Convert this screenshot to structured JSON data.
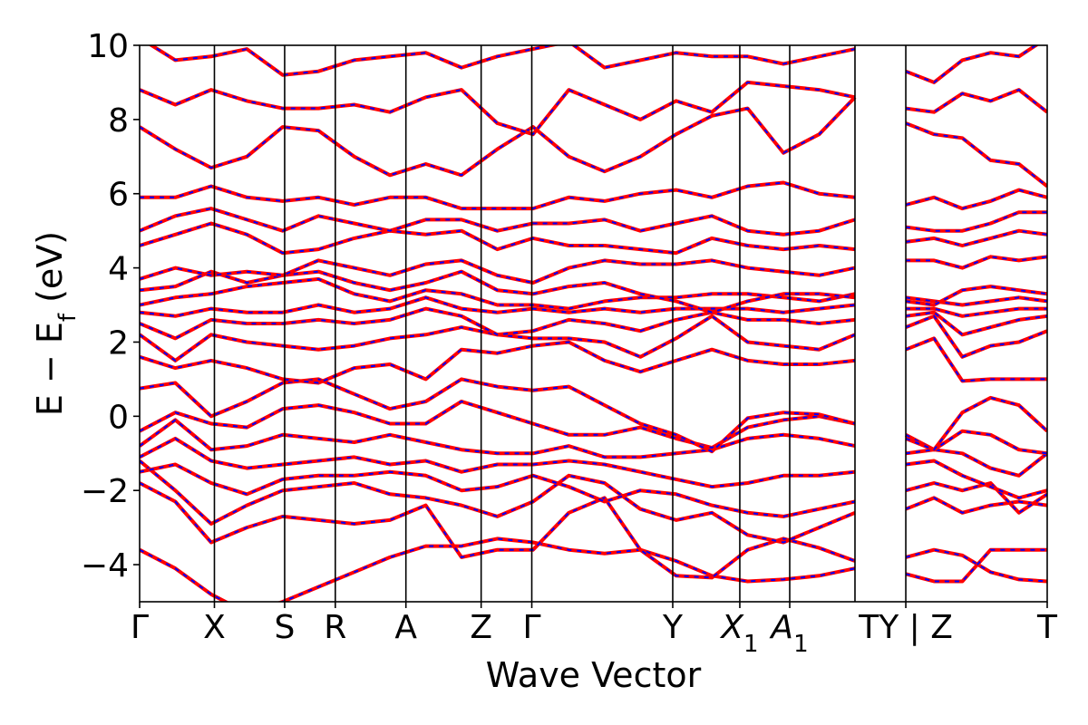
{
  "chart_data": {
    "type": "line",
    "title": "",
    "xlabel": "Wave Vector",
    "ylabel": "E − E_f (eV)",
    "ylabel_parts": {
      "main": "E − E",
      "sub": "f",
      "unit": " (eV)"
    },
    "ylim": [
      -5,
      10
    ],
    "yticks": [
      -4,
      -2,
      0,
      2,
      4,
      6,
      8,
      10
    ],
    "ytick_labels": [
      "−4",
      "−2",
      "0",
      "2",
      "4",
      "6",
      "8",
      "10"
    ],
    "grid": false,
    "legend": "none",
    "colors": {
      "solid_band": "#ff0000",
      "dashed_band": "#0000ff",
      "axes": "#000000"
    },
    "kpath": [
      {
        "label": "Γ",
        "sub": "",
        "pos": 0.0
      },
      {
        "label": "X",
        "sub": "",
        "pos": 0.0824
      },
      {
        "label": "S",
        "sub": "",
        "pos": 0.1598
      },
      {
        "label": "R",
        "sub": "",
        "pos": 0.2156
      },
      {
        "label": "A",
        "sub": "",
        "pos": 0.2934
      },
      {
        "label": "Z",
        "sub": "",
        "pos": 0.3763
      },
      {
        "label": "Γ",
        "sub": "",
        "pos": 0.4321
      },
      {
        "label": "Y",
        "sub": "",
        "pos": 0.5874
      },
      {
        "label": "X",
        "sub": "1",
        "pos": 0.6613
      },
      {
        "label": "A",
        "sub": "1",
        "pos": 0.7163
      },
      {
        "label": "TY | Z",
        "sub": "",
        "pos": 0.8442
      },
      {
        "label": "T",
        "sub": "",
        "pos": 1.0
      }
    ],
    "interior_vertical_lines": [
      0.0824,
      0.1598,
      0.2156,
      0.2934,
      0.3763,
      0.4321,
      0.5874,
      0.6613,
      0.7163,
      0.7882,
      0.8442
    ],
    "segment_break_after": 0.7882,
    "segment_resume_at": 0.8442,
    "series": [
      {
        "values": [
          -3.6,
          -4.1,
          -4.8,
          -5.3,
          -5.0,
          -4.6,
          -4.2,
          -3.8,
          -3.5,
          -3.5,
          -3.3,
          -3.4,
          -3.6,
          -3.7,
          -3.6,
          -3.9,
          -4.3,
          -4.45,
          -4.4,
          -4.3,
          -4.1,
          -3.8,
          -3.6,
          -3.75,
          -4.2,
          -4.4,
          -4.45
        ]
      },
      {
        "values": [
          -1.8,
          -2.3,
          -3.4,
          -3.0,
          -2.7,
          -2.8,
          -2.9,
          -2.8,
          -2.4,
          -3.8,
          -3.6,
          -3.6,
          -2.6,
          -2.2,
          -3.6,
          -4.3,
          -4.35,
          -3.6,
          -3.3,
          -3.55,
          -3.9,
          -4.25,
          -4.45,
          -4.45,
          -3.6,
          -3.6,
          -3.6
        ]
      },
      {
        "values": [
          -1.2,
          -2.0,
          -2.9,
          -2.4,
          -2.0,
          -1.9,
          -1.8,
          -2.1,
          -2.2,
          -2.4,
          -2.7,
          -2.3,
          -1.6,
          -1.8,
          -2.5,
          -2.8,
          -2.6,
          -3.2,
          -3.4,
          -3.0,
          -2.6,
          -2.5,
          -2.2,
          -2.6,
          -2.4,
          -2.3,
          -2.4
        ]
      },
      {
        "values": [
          -1.5,
          -1.3,
          -1.8,
          -2.1,
          -1.7,
          -1.6,
          -1.6,
          -1.5,
          -1.6,
          -2.0,
          -1.9,
          -1.6,
          -1.9,
          -2.3,
          -2.0,
          -2.1,
          -2.4,
          -2.6,
          -2.7,
          -2.5,
          -2.3,
          -2.0,
          -1.8,
          -2.0,
          -1.8,
          -2.6,
          -2.1
        ]
      },
      {
        "values": [
          -1.1,
          -0.6,
          -1.2,
          -1.4,
          -1.3,
          -1.2,
          -1.1,
          -1.3,
          -1.2,
          -1.5,
          -1.3,
          -1.3,
          -1.2,
          -1.3,
          -1.5,
          -1.7,
          -1.9,
          -1.8,
          -1.6,
          -1.6,
          -1.5,
          -1.3,
          -1.2,
          -1.6,
          -1.9,
          -2.2,
          -2.0
        ]
      },
      {
        "values": [
          -0.8,
          -0.1,
          -0.9,
          -0.8,
          -0.5,
          -0.6,
          -0.7,
          -0.5,
          -0.7,
          -0.9,
          -1.0,
          -1.0,
          -0.8,
          -1.1,
          -1.1,
          -1.0,
          -0.9,
          -0.6,
          -0.5,
          -0.6,
          -0.8,
          -1.0,
          -0.9,
          -1.0,
          -1.4,
          -1.6,
          -1.0
        ]
      },
      {
        "values": [
          -0.4,
          0.1,
          -0.2,
          -0.3,
          0.2,
          0.3,
          0.1,
          -0.2,
          -0.2,
          0.4,
          0.1,
          -0.2,
          -0.5,
          -0.5,
          -0.3,
          -0.6,
          -0.85,
          -0.3,
          -0.1,
          0.0,
          -0.2,
          -0.5,
          -0.9,
          -0.4,
          -0.5,
          -0.9,
          -1.0
        ]
      },
      {
        "values": [
          0.75,
          0.9,
          0.0,
          0.4,
          0.9,
          1.0,
          0.6,
          0.2,
          0.4,
          1.0,
          0.8,
          0.7,
          0.8,
          0.3,
          -0.2,
          -0.5,
          -0.95,
          -0.05,
          0.1,
          0.05,
          -0.2,
          -0.6,
          -0.9,
          0.1,
          0.5,
          0.3,
          -0.4
        ]
      },
      {
        "values": [
          1.6,
          1.3,
          1.5,
          1.3,
          1.0,
          0.9,
          1.3,
          1.4,
          1.0,
          1.8,
          1.7,
          1.9,
          2.0,
          1.5,
          1.2,
          1.5,
          1.8,
          1.5,
          1.4,
          1.4,
          1.5,
          1.8,
          2.1,
          0.95,
          1.0,
          1.0,
          1.0
        ]
      },
      {
        "values": [
          2.2,
          1.5,
          2.2,
          2.0,
          1.9,
          1.8,
          1.9,
          2.1,
          2.2,
          2.4,
          2.2,
          2.1,
          2.1,
          2.0,
          1.6,
          2.1,
          2.7,
          2.0,
          1.9,
          1.8,
          2.2,
          2.4,
          2.7,
          1.6,
          1.9,
          2.0,
          2.3
        ]
      },
      {
        "values": [
          2.5,
          2.1,
          2.6,
          2.5,
          2.5,
          2.6,
          2.5,
          2.6,
          2.9,
          2.7,
          2.2,
          2.3,
          2.6,
          2.5,
          2.3,
          2.6,
          2.8,
          2.6,
          2.6,
          2.5,
          2.6,
          2.7,
          2.8,
          2.2,
          2.4,
          2.6,
          2.7
        ]
      },
      {
        "values": [
          2.8,
          2.7,
          2.9,
          2.8,
          2.8,
          3.0,
          2.8,
          2.9,
          3.2,
          2.9,
          2.8,
          2.9,
          2.8,
          2.9,
          2.8,
          2.9,
          2.9,
          2.9,
          2.8,
          2.9,
          3.0,
          2.9,
          2.9,
          2.7,
          2.8,
          2.9,
          2.9
        ]
      },
      {
        "values": [
          3.0,
          3.2,
          3.3,
          3.5,
          3.6,
          3.7,
          3.3,
          3.1,
          3.4,
          3.3,
          3.0,
          3.0,
          2.9,
          3.1,
          3.2,
          3.2,
          3.3,
          3.3,
          3.2,
          3.1,
          3.3,
          3.2,
          3.1,
          3.0,
          3.1,
          3.2,
          3.1
        ]
      },
      {
        "values": [
          3.4,
          3.5,
          3.9,
          3.6,
          3.8,
          3.9,
          3.6,
          3.4,
          3.6,
          3.9,
          3.4,
          3.3,
          3.5,
          3.6,
          3.3,
          3.1,
          2.8,
          3.1,
          3.3,
          3.3,
          3.2,
          3.1,
          3.0,
          3.4,
          3.5,
          3.4,
          3.3
        ]
      },
      {
        "values": [
          3.7,
          4.0,
          3.8,
          3.9,
          3.8,
          4.2,
          4.0,
          3.8,
          4.1,
          4.2,
          3.8,
          3.6,
          4.0,
          4.2,
          4.1,
          4.1,
          4.2,
          4.0,
          3.9,
          3.8,
          4.0,
          4.2,
          4.2,
          4.0,
          4.3,
          4.2,
          4.3
        ]
      },
      {
        "values": [
          4.6,
          4.9,
          5.2,
          4.9,
          4.4,
          4.5,
          4.8,
          5.0,
          4.9,
          5.0,
          4.5,
          4.8,
          4.6,
          4.6,
          4.5,
          4.4,
          4.8,
          4.6,
          4.5,
          4.6,
          4.5,
          4.7,
          4.8,
          4.6,
          4.8,
          5.0,
          4.9
        ]
      },
      {
        "values": [
          5.0,
          5.4,
          5.6,
          5.3,
          5.0,
          5.4,
          5.2,
          5.0,
          5.3,
          5.3,
          5.0,
          5.2,
          5.2,
          5.3,
          5.0,
          5.2,
          5.4,
          5.0,
          4.9,
          5.0,
          5.3,
          5.1,
          5.0,
          5.0,
          5.2,
          5.5,
          5.5
        ]
      },
      {
        "values": [
          5.9,
          5.9,
          6.2,
          5.9,
          5.8,
          5.9,
          5.7,
          5.9,
          5.9,
          5.6,
          5.6,
          5.6,
          5.9,
          5.8,
          6.0,
          6.1,
          5.9,
          6.2,
          6.3,
          6.0,
          5.9,
          5.7,
          5.9,
          5.6,
          5.8,
          6.1,
          5.9
        ]
      },
      {
        "values": [
          7.8,
          7.2,
          6.7,
          7.0,
          7.8,
          7.7,
          7.0,
          6.5,
          6.8,
          6.5,
          7.2,
          7.8,
          7.0,
          6.6,
          7.0,
          7.6,
          8.1,
          8.3,
          7.1,
          7.6,
          8.6,
          7.9,
          7.6,
          7.5,
          6.9,
          6.8,
          6.2
        ]
      },
      {
        "values": [
          8.8,
          8.4,
          8.8,
          8.5,
          8.3,
          8.3,
          8.4,
          8.2,
          8.6,
          8.8,
          7.9,
          7.6,
          8.8,
          8.4,
          8.0,
          8.5,
          8.2,
          9.0,
          8.9,
          8.8,
          8.6,
          8.3,
          8.2,
          8.7,
          8.5,
          8.8,
          8.2
        ]
      },
      {
        "values": [
          10.2,
          9.6,
          9.7,
          9.9,
          9.2,
          9.3,
          9.6,
          9.7,
          9.8,
          9.4,
          9.7,
          9.9,
          10.1,
          9.4,
          9.6,
          9.8,
          9.7,
          9.7,
          9.5,
          9.7,
          9.9,
          9.3,
          9.0,
          9.6,
          9.8,
          9.7,
          10.2
        ]
      }
    ]
  }
}
